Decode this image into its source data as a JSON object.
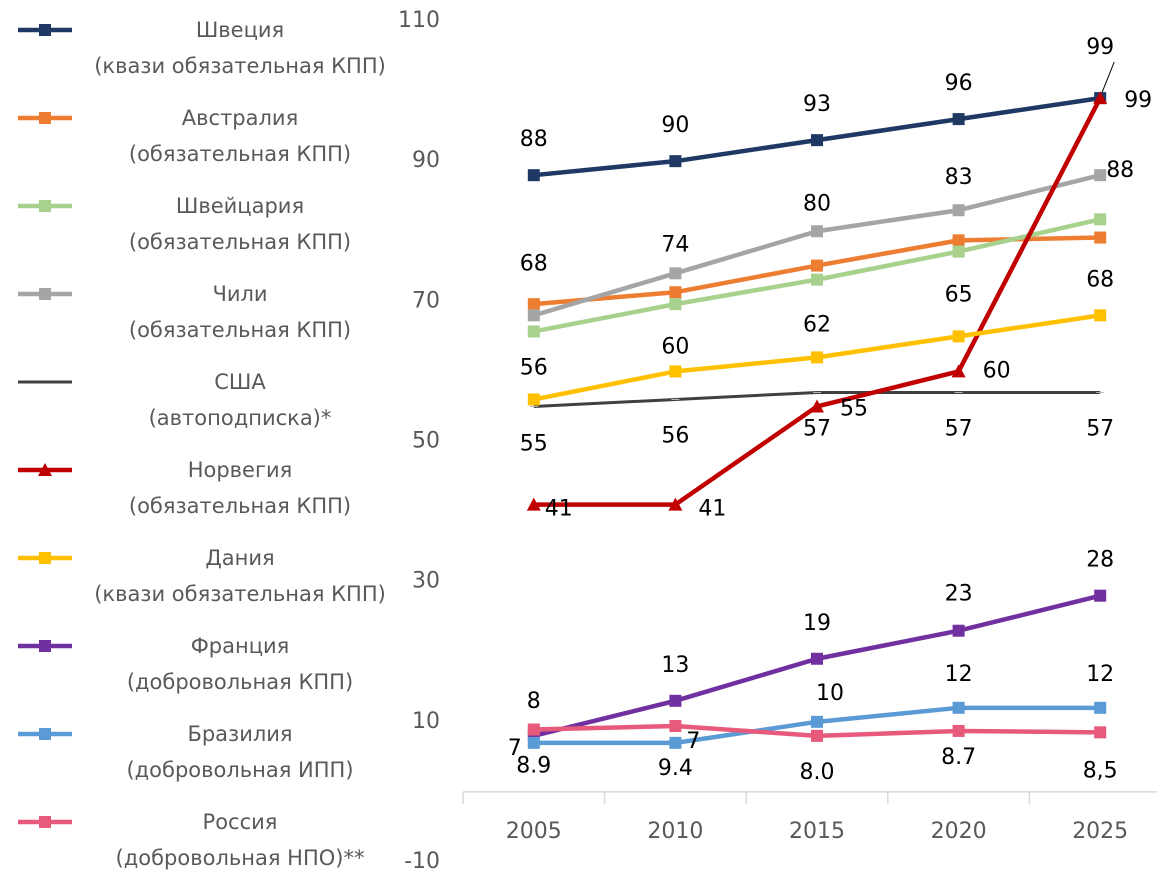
{
  "chart_data": {
    "type": "line",
    "categories": [
      "2005",
      "2010",
      "2015",
      "2020",
      "2025"
    ],
    "ylim": [
      -10,
      110
    ],
    "yticks": [
      -10,
      10,
      30,
      50,
      70,
      90,
      110
    ],
    "grid": false,
    "legend": "left",
    "series": [
      {
        "name": "Швеция\n(квази обязательная КПП)",
        "color": "#203864",
        "marker": "square",
        "values": [
          88,
          90,
          93,
          96,
          99
        ]
      },
      {
        "name": "Австралия\n(обязательная КПП)",
        "color": "#ed7d31",
        "marker": "square",
        "values": [
          69.6,
          71.3,
          75.1,
          78.7,
          79.1
        ]
      },
      {
        "name": "Швейцария\n(обязательная КПП)",
        "color": "#a9d18e",
        "marker": "square",
        "values": [
          65.7,
          69.6,
          73.1,
          77.1,
          81.7
        ]
      },
      {
        "name": "Чили\n(обязательная КПП)",
        "color": "#a5a5a5",
        "marker": "square",
        "values": [
          68,
          74,
          80,
          83,
          88
        ]
      },
      {
        "name": "США\n(автоподписка)*",
        "color": "#404040",
        "marker": "none",
        "values": [
          55,
          56,
          57,
          57,
          57
        ]
      },
      {
        "name": "Норвегия\n(обязательная КПП)",
        "color": "#c00000",
        "marker": "triangle",
        "values": [
          41,
          41,
          55,
          60,
          99
        ]
      },
      {
        "name": "Дания\n(квази обязательная КПП)",
        "color": "#ffc000",
        "marker": "square",
        "values": [
          56,
          60,
          62,
          65,
          68
        ]
      },
      {
        "name": "Франция\n(добровольная КПП)",
        "color": "#7030a0",
        "marker": "square",
        "values": [
          8,
          13,
          19,
          23,
          28
        ]
      },
      {
        "name": "Бразилия\n(добровольная ИПП)",
        "color": "#5b9bd5",
        "marker": "square",
        "values": [
          7,
          7,
          10,
          12,
          12
        ]
      },
      {
        "name": "Россия\n(добровольная НПО)**",
        "color": "#e75a7c",
        "marker": "square",
        "values": [
          8.9,
          9.4,
          8,
          8.7,
          8.5
        ],
        "value_labels": [
          "8.9",
          "9.4",
          "8.0",
          "8.7",
          "8,5"
        ]
      }
    ]
  }
}
